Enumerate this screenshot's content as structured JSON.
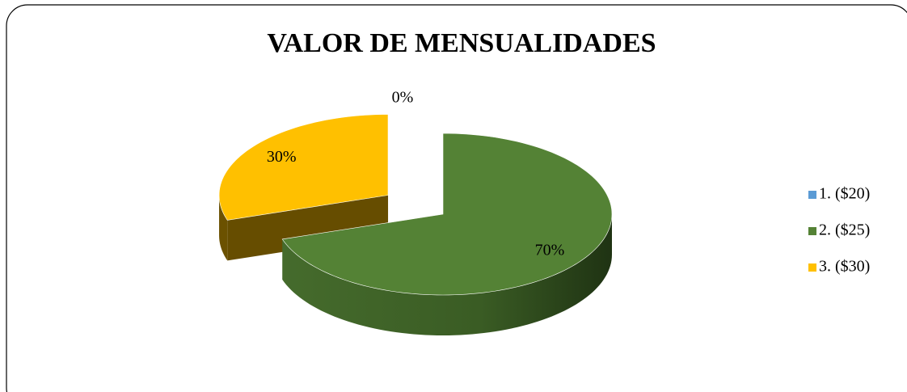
{
  "chart_data": {
    "type": "pie",
    "title": "VALOR DE MENSUALIDADES",
    "categories": [
      "1. ($20)",
      "2. ($25)",
      "3. ($30)"
    ],
    "values": [
      0,
      70,
      30
    ],
    "value_labels": [
      "0%",
      "70%",
      "30%"
    ],
    "colors": [
      "#5b9bd5",
      "#548235",
      "#ffc000"
    ],
    "legend": "right"
  }
}
